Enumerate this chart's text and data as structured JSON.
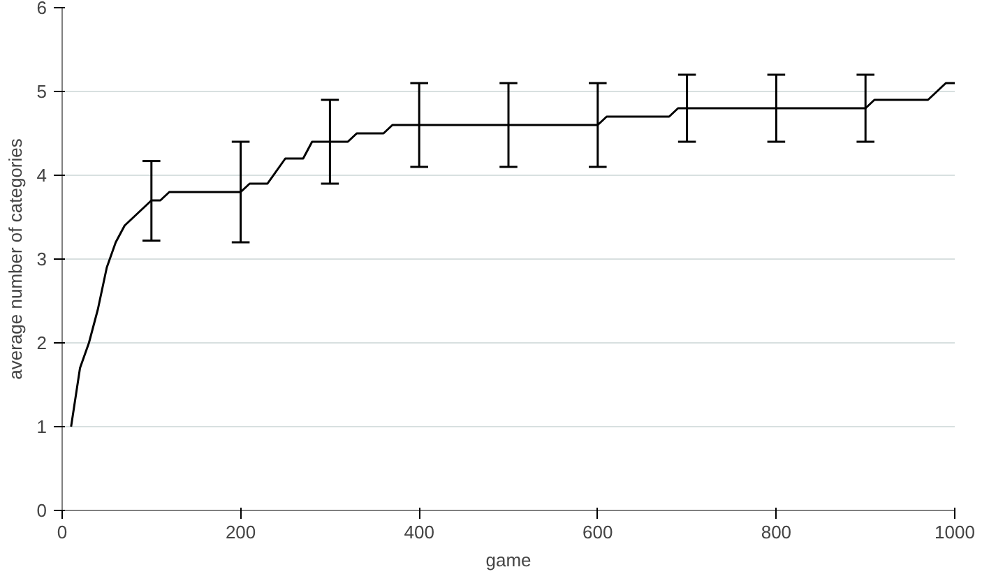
{
  "chart_data": {
    "type": "line",
    "xlabel": "game",
    "ylabel": "average number of categories",
    "x": [
      10,
      20,
      30,
      40,
      50,
      60,
      70,
      80,
      90,
      100,
      110,
      120,
      200,
      210,
      230,
      250,
      270,
      280,
      300,
      320,
      330,
      360,
      370,
      400,
      500,
      600,
      610,
      680,
      690,
      700,
      800,
      900,
      910,
      970,
      990,
      1000
    ],
    "series": [
      {
        "color": "#000000",
        "values": [
          1.0,
          1.7,
          2.0,
          2.4,
          2.9,
          3.2,
          3.4,
          3.5,
          3.6,
          3.7,
          3.7,
          3.8,
          3.8,
          3.9,
          3.9,
          4.2,
          4.2,
          4.4,
          4.4,
          4.4,
          4.5,
          4.5,
          4.6,
          4.6,
          4.6,
          4.6,
          4.7,
          4.7,
          4.8,
          4.8,
          4.8,
          4.8,
          4.9,
          4.9,
          5.1,
          5.1
        ],
        "errors": [
          null,
          null,
          null,
          null,
          null,
          null,
          null,
          null,
          null,
          [
            3.22,
            4.17
          ],
          null,
          null,
          [
            3.2,
            4.4
          ],
          null,
          null,
          null,
          null,
          null,
          [
            3.9,
            4.9
          ],
          null,
          null,
          null,
          null,
          [
            4.1,
            5.1
          ],
          [
            4.1,
            5.1
          ],
          [
            4.1,
            5.1
          ],
          null,
          null,
          null,
          [
            4.4,
            5.2
          ],
          [
            4.4,
            5.2
          ],
          [
            4.4,
            5.2
          ],
          null,
          null,
          null,
          null
        ]
      }
    ],
    "xlim": [
      0,
      1000
    ],
    "xticks": [
      0,
      200,
      400,
      600,
      800,
      1000
    ],
    "ylim": [
      0,
      6
    ],
    "yticks": [
      0,
      1,
      2,
      3,
      4,
      5,
      6
    ],
    "grid": "y",
    "marker": "none",
    "line_style": "solid"
  }
}
